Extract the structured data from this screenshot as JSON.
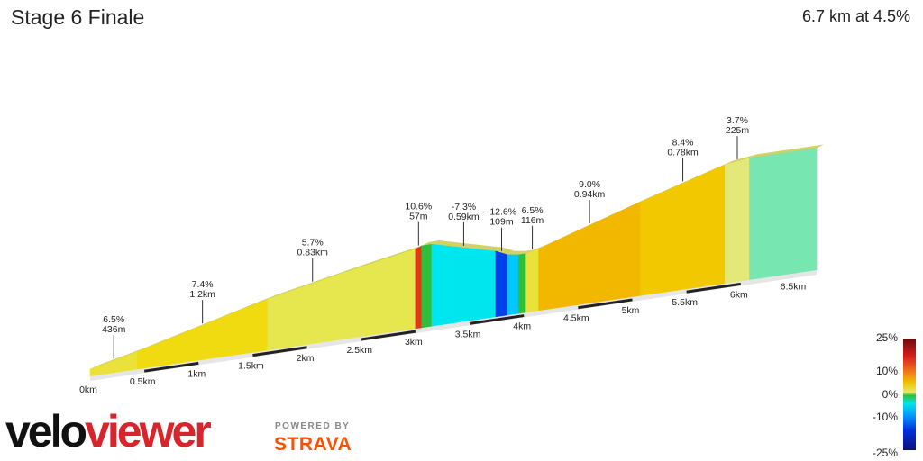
{
  "header": {
    "title": "Stage 6 Finale",
    "summary": "6.7 km at 4.5%"
  },
  "chart_data": {
    "type": "area",
    "title": "Stage 6 Finale",
    "xlabel": "",
    "ylabel": "",
    "x_unit": "km",
    "xlim": [
      0,
      6.7
    ],
    "x_ticks": [
      "0km",
      "0.5km",
      "1km",
      "1.5km",
      "2km",
      "2.5km",
      "3km",
      "3.5km",
      "4km",
      "4.5km",
      "5km",
      "5.5km",
      "6km",
      "6.5km"
    ],
    "segments": [
      {
        "gradient": "6.5%",
        "length": "436m",
        "start_km": 0.0,
        "end_km": 0.436,
        "grade": 6.5
      },
      {
        "gradient": "7.4%",
        "length": "1.2km",
        "start_km": 0.436,
        "end_km": 1.636,
        "grade": 7.4
      },
      {
        "gradient": "5.7%",
        "length": "0.83km",
        "start_km": 1.636,
        "end_km": 2.466,
        "grade": 5.7
      },
      {
        "gradient": "",
        "length": "",
        "start_km": 2.466,
        "end_km": 3.0,
        "grade": 5.2
      },
      {
        "gradient": "10.6%",
        "length": "57m",
        "start_km": 3.0,
        "end_km": 3.057,
        "grade": 10.6
      },
      {
        "gradient": "",
        "length": "",
        "start_km": 3.057,
        "end_km": 3.15,
        "grade": 0.5
      },
      {
        "gradient": "-7.3%",
        "length": "0.59km",
        "start_km": 3.15,
        "end_km": 3.74,
        "grade": -7.3
      },
      {
        "gradient": "-12.6%",
        "length": "109m",
        "start_km": 3.74,
        "end_km": 3.849,
        "grade": -12.6
      },
      {
        "gradient": "",
        "length": "",
        "start_km": 3.849,
        "end_km": 3.95,
        "grade": -4.5
      },
      {
        "gradient": "",
        "length": "",
        "start_km": 3.95,
        "end_km": 4.02,
        "grade": 0.5
      },
      {
        "gradient": "6.5%",
        "length": "116m",
        "start_km": 4.02,
        "end_km": 4.136,
        "grade": 6.5
      },
      {
        "gradient": "9.0%",
        "length": "0.94km",
        "start_km": 4.136,
        "end_km": 5.076,
        "grade": 9.0
      },
      {
        "gradient": "8.4%",
        "length": "0.78km",
        "start_km": 5.076,
        "end_km": 5.856,
        "grade": 8.4
      },
      {
        "gradient": "3.7%",
        "length": "225m",
        "start_km": 5.856,
        "end_km": 6.081,
        "grade": 3.7
      },
      {
        "gradient": "",
        "length": "",
        "start_km": 6.081,
        "end_km": 6.7,
        "grade": 0.0
      }
    ],
    "color_scale": {
      "labels": [
        "25%",
        "10%",
        "0%",
        "-10%",
        "-25%"
      ],
      "stops": [
        25,
        10,
        0,
        -10,
        -25
      ]
    },
    "colors": {
      "grade_25": "#6a0a0a",
      "grade_10": "#e03a14",
      "grade_9": "#f2b800",
      "grade_8": "#f2c800",
      "grade_7": "#f0da10",
      "grade_6": "#eae23a",
      "grade_5": "#e6e64e",
      "grade_3": "#e4e878",
      "grade_0": "#78e6b0",
      "grade_flat": "#2fbf3a",
      "grade_m7": "#00e6ee",
      "grade_m12": "#0040e8",
      "grade_m4": "#00c8ff"
    }
  },
  "branding": {
    "logo_black": "velo",
    "logo_red": "viewer",
    "powered_by": "POWERED BY",
    "partner": "STRAVA"
  }
}
